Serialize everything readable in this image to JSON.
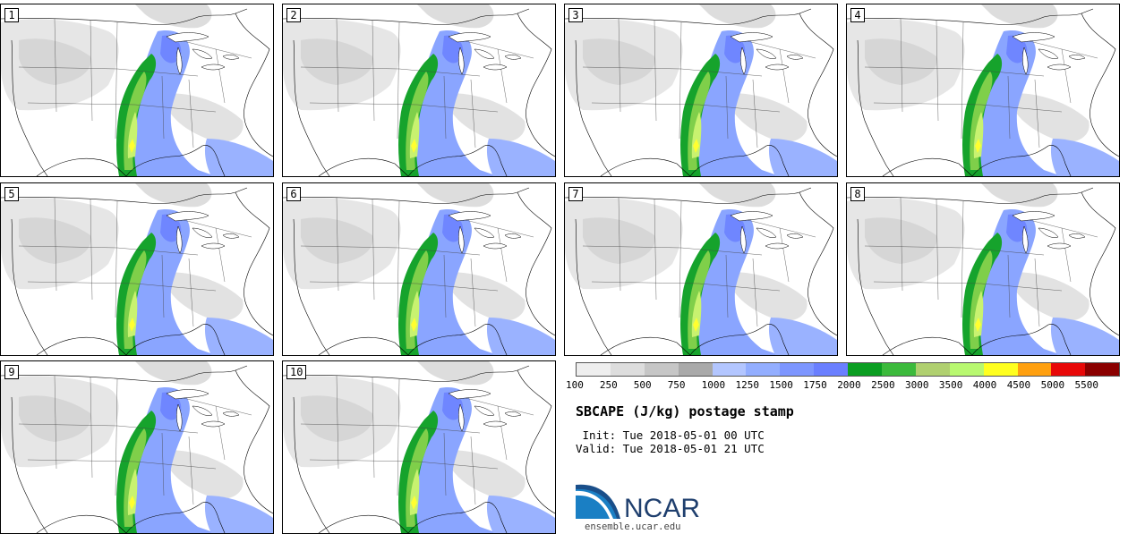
{
  "panels": [
    {
      "label": "1"
    },
    {
      "label": "2"
    },
    {
      "label": "3"
    },
    {
      "label": "4"
    },
    {
      "label": "5"
    },
    {
      "label": "6"
    },
    {
      "label": "7"
    },
    {
      "label": "8"
    },
    {
      "label": "9"
    },
    {
      "label": "10"
    }
  ],
  "colorbar": {
    "colors": [
      "#eeeeee",
      "#dddddd",
      "#c6c6c6",
      "#a9a9a9",
      "#b3c6ff",
      "#93aeff",
      "#7d96ff",
      "#6a7fff",
      "#0b9e22",
      "#3cba3c",
      "#b0d070",
      "#b8f870",
      "#ffff20",
      "#ffa010",
      "#e80808",
      "#8b0000"
    ],
    "ticks": [
      "100",
      "250",
      "500",
      "750",
      "1000",
      "1250",
      "1500",
      "1750",
      "2000",
      "2500",
      "3000",
      "3500",
      "4000",
      "4500",
      "5000",
      "5500"
    ]
  },
  "title": "SBCAPE (J/kg) postage stamp",
  "init": " Init: Tue 2018-05-01 00 UTC",
  "valid": "Valid: Tue 2018-05-01 21 UTC",
  "logo": {
    "text": "NCAR",
    "colors": {
      "swoosh_dark": "#1a4f8a",
      "swoosh_light": "#1a7fc4",
      "text": "#1f3f6e"
    }
  },
  "url": "ensemble.ucar.edu"
}
